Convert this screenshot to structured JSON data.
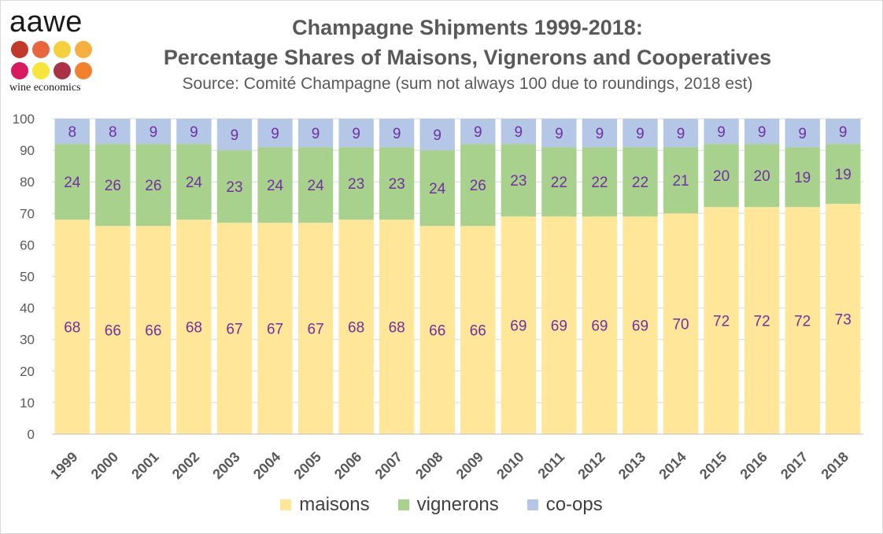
{
  "logo": {
    "wordmark": "aawe",
    "tagline": "wine economics",
    "dot_colors": [
      "#c0392b",
      "#e8663d",
      "#f4d03f",
      "#f5b041",
      "#d81b60",
      "#f7e53b",
      "#a93246",
      "#f0812f"
    ]
  },
  "header": {
    "title_line1": "Champagne Shipments 1999-2018:",
    "title_line2": "Percentage Shares of Maisons, Vignerons and Cooperatives",
    "subtitle": "Source: Comité Champagne (sum not always 100 due to roundings, 2018 est)"
  },
  "colors": {
    "maisons": "#ffe699",
    "vignerons": "#a9d18e",
    "coops": "#b4c7e7",
    "data_label": "#7030a0",
    "axis_text": "#595959",
    "grid": "#d9d9d9"
  },
  "chart_data": {
    "type": "bar",
    "stacked": true,
    "categories": [
      "1999",
      "2000",
      "2001",
      "2002",
      "2003",
      "2004",
      "2005",
      "2006",
      "2007",
      "2008",
      "2009",
      "2010",
      "2011",
      "2012",
      "2013",
      "2014",
      "2015",
      "2016",
      "2017",
      "2018"
    ],
    "series": [
      {
        "name": "maisons",
        "values": [
          68,
          66,
          66,
          68,
          67,
          67,
          67,
          68,
          68,
          66,
          66,
          69,
          69,
          69,
          69,
          70,
          72,
          72,
          72,
          73
        ]
      },
      {
        "name": "vignerons",
        "values": [
          24,
          26,
          26,
          24,
          23,
          24,
          24,
          23,
          23,
          24,
          26,
          23,
          22,
          22,
          22,
          21,
          20,
          20,
          19,
          19
        ]
      },
      {
        "name": "co-ops",
        "values": [
          8,
          8,
          9,
          9,
          9,
          9,
          9,
          9,
          9,
          9,
          9,
          9,
          9,
          9,
          9,
          9,
          9,
          9,
          9,
          9
        ]
      }
    ],
    "y_ticks": [
      0,
      10,
      20,
      30,
      40,
      50,
      60,
      70,
      80,
      90,
      100
    ],
    "ylim": [
      0,
      100
    ],
    "grid": true,
    "legend_position": "bottom"
  }
}
